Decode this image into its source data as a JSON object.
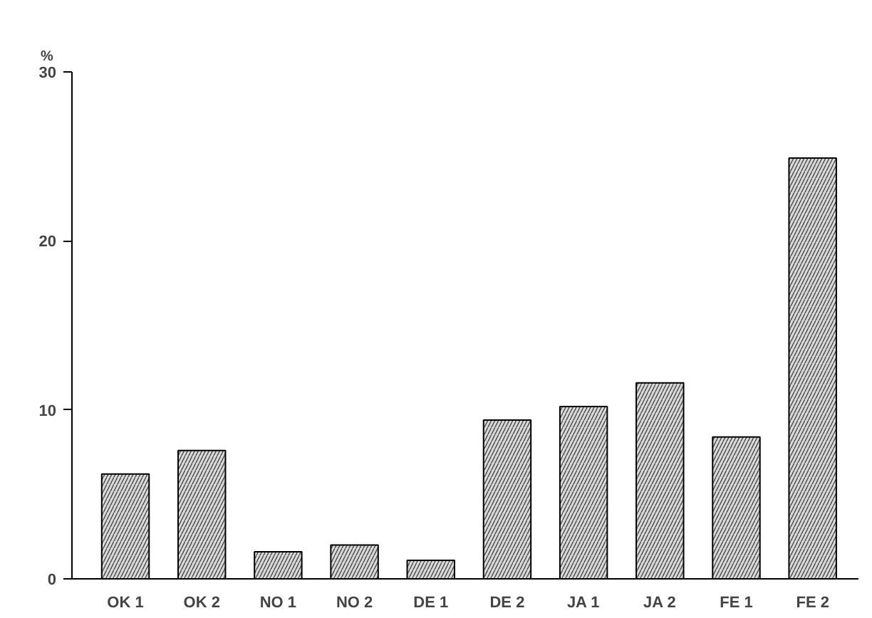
{
  "chart_data": {
    "type": "bar",
    "ylabel": "%",
    "categories": [
      "OK 1",
      "OK 2",
      "NO 1",
      "NO 2",
      "DE 1",
      "DE 2",
      "JA 1",
      "JA 2",
      "FE 1",
      "FE 2"
    ],
    "values": [
      6.2,
      7.6,
      1.6,
      2.0,
      1.1,
      9.4,
      10.2,
      11.6,
      8.4,
      24.9
    ],
    "color": "#d9d9d9",
    "ylim": [
      0,
      30
    ],
    "yticks": [
      0,
      10,
      20,
      30
    ],
    "grid": false
  }
}
